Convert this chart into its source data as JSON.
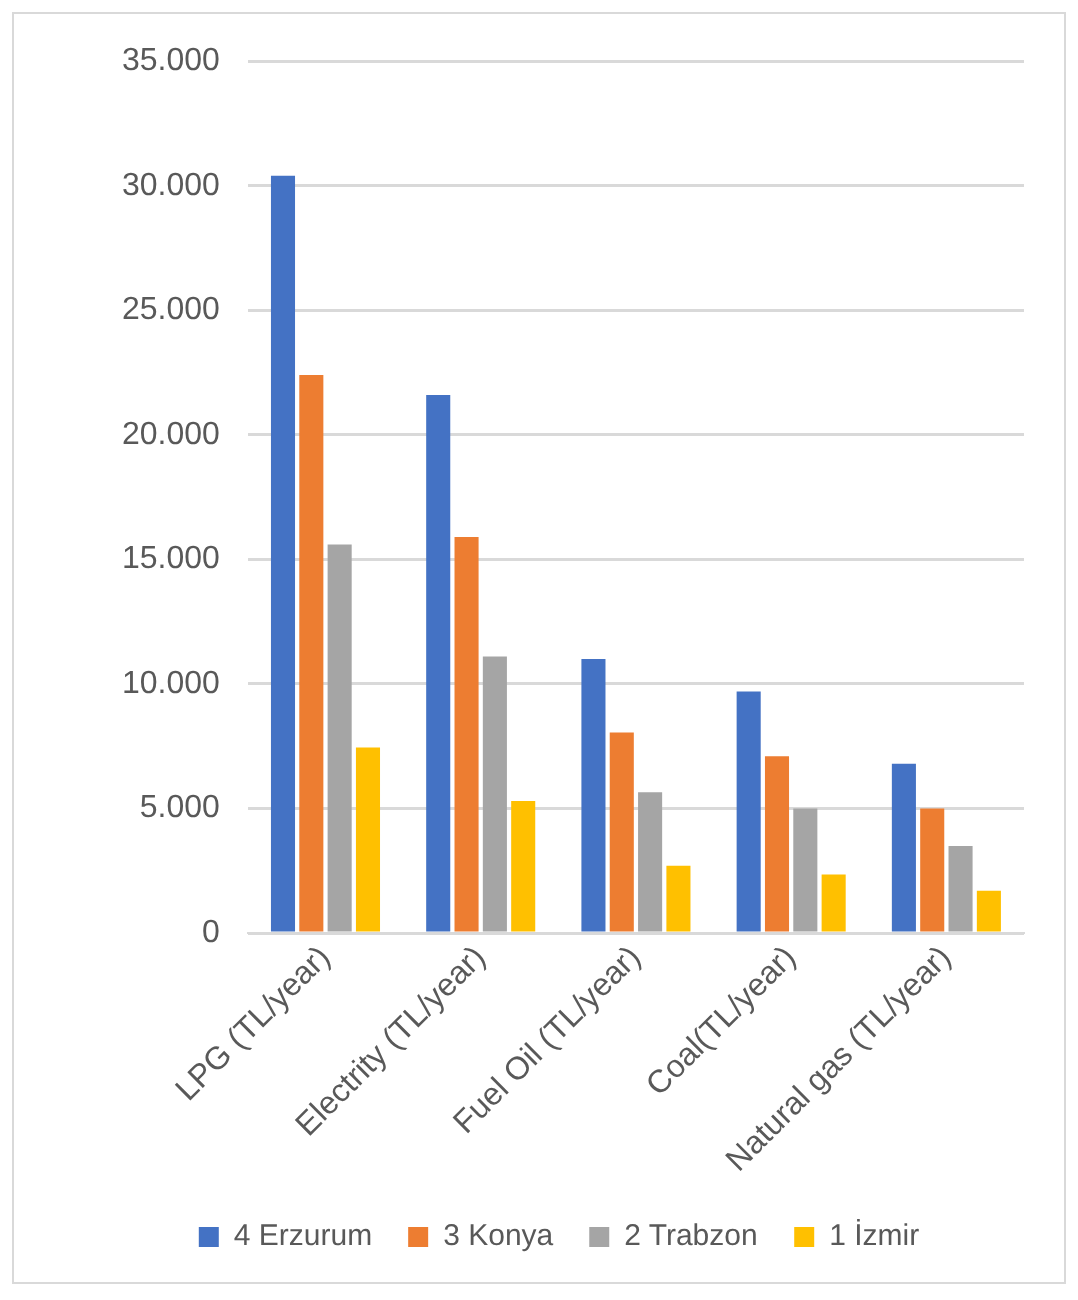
{
  "chart_data": {
    "type": "bar",
    "categories": [
      "LPG (TL/year)",
      "Electrity (TL/year)",
      "Fuel Oil (TL/year)",
      "Coal(TL/year)",
      "Natural gas (TL/year)"
    ],
    "series": [
      {
        "name": "4 Erzurum",
        "color": "#4472c4",
        "values": [
          30400,
          21600,
          11000,
          9700,
          6800
        ]
      },
      {
        "name": "3 Konya",
        "color": "#ed7d31",
        "values": [
          22400,
          15900,
          8050,
          7100,
          5000
        ]
      },
      {
        "name": "2 Trabzon",
        "color": "#a5a5a5",
        "values": [
          15600,
          11100,
          5650,
          5000,
          3500
        ]
      },
      {
        "name": "1 İzmir",
        "color": "#ffc000",
        "values": [
          7450,
          5300,
          2700,
          2350,
          1700
        ]
      }
    ],
    "ylim": [
      0,
      35000
    ],
    "yticks": [
      {
        "value": 0,
        "label": "0"
      },
      {
        "value": 5000,
        "label": "5.000"
      },
      {
        "value": 10000,
        "label": "10.000"
      },
      {
        "value": 15000,
        "label": "15.000"
      },
      {
        "value": 20000,
        "label": "20.000"
      },
      {
        "value": 25000,
        "label": "25.000"
      },
      {
        "value": 30000,
        "label": "30.000"
      },
      {
        "value": 35000,
        "label": "35.000"
      }
    ],
    "grid": "y",
    "legend": "bottom"
  }
}
